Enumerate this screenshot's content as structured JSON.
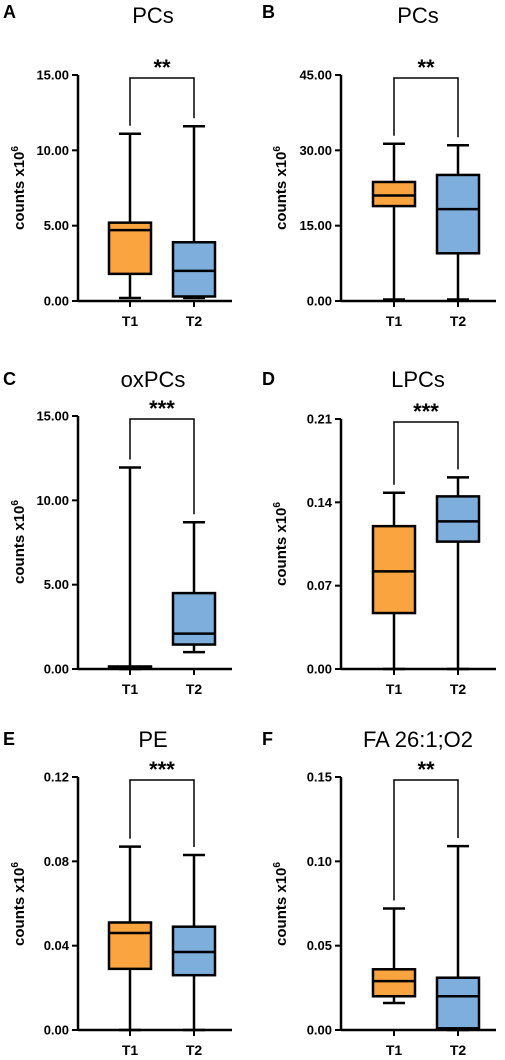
{
  "figure": {
    "panels_order": [
      "A",
      "B",
      "C",
      "D",
      "E",
      "F"
    ]
  },
  "chart_data": [
    {
      "panel": "A",
      "type": "box",
      "title": "PCs",
      "ylabel": "counts x10",
      "ylabel_sup": "6",
      "categories": [
        "T1",
        "T2"
      ],
      "yticks": [
        "0.00",
        "5.00",
        "10.00",
        "15.00"
      ],
      "ylim": [
        0,
        15
      ],
      "boxes": [
        {
          "min": 0.2,
          "q1": 1.8,
          "median": 4.7,
          "q3": 5.2,
          "max": 11.1,
          "color": "#f9a43f"
        },
        {
          "min": 0.2,
          "q1": 0.3,
          "median": 2.0,
          "q3": 3.9,
          "max": 11.6,
          "color": "#7eaedc"
        }
      ],
      "significance": "**"
    },
    {
      "panel": "B",
      "type": "box",
      "title": "PCs",
      "ylabel": "counts x10",
      "ylabel_sup": "6",
      "categories": [
        "T1",
        "T2"
      ],
      "yticks": [
        "0.00",
        "15.00",
        "30.00",
        "45.00"
      ],
      "ylim": [
        0,
        45
      ],
      "boxes": [
        {
          "min": 0.3,
          "q1": 18.9,
          "median": 21.0,
          "q3": 23.7,
          "max": 31.3,
          "color": "#f9a43f"
        },
        {
          "min": 0.3,
          "q1": 9.5,
          "median": 18.3,
          "q3": 25.1,
          "max": 31.0,
          "color": "#7eaedc"
        }
      ],
      "significance": "**"
    },
    {
      "panel": "C",
      "type": "box",
      "title": "oxPCs",
      "ylabel": "counts x10",
      "ylabel_sup": "6",
      "categories": [
        "T1",
        "T2"
      ],
      "yticks": [
        "0.00",
        "5.00",
        "10.00",
        "15.00"
      ],
      "ylim": [
        0,
        15
      ],
      "boxes": [
        {
          "min": 0.0,
          "q1": 0.05,
          "median": 0.1,
          "q3": 0.15,
          "max": 11.95,
          "color": "#f9a43f"
        },
        {
          "min": 1.0,
          "q1": 1.45,
          "median": 2.1,
          "q3": 4.5,
          "max": 8.7,
          "color": "#7eaedc"
        }
      ],
      "significance": "***"
    },
    {
      "panel": "D",
      "type": "box",
      "title": "LPCs",
      "ylabel": "counts x10",
      "ylabel_sup": "6",
      "categories": [
        "T1",
        "T2"
      ],
      "yticks": [
        "0.00",
        "0.07",
        "0.14",
        "0.21"
      ],
      "ylim": [
        0,
        0.21
      ],
      "boxes": [
        {
          "min": 0.0,
          "q1": 0.047,
          "median": 0.082,
          "q3": 0.12,
          "max": 0.148,
          "color": "#f9a43f"
        },
        {
          "min": 0.0,
          "q1": 0.107,
          "median": 0.124,
          "q3": 0.145,
          "max": 0.161,
          "color": "#7eaedc"
        }
      ],
      "significance": "***"
    },
    {
      "panel": "E",
      "type": "box",
      "title": "PE",
      "ylabel": "counts x10",
      "ylabel_sup": "6",
      "categories": [
        "T1",
        "T2"
      ],
      "yticks": [
        "0.00",
        "0.04",
        "0.08",
        "0.12"
      ],
      "ylim": [
        0,
        0.12
      ],
      "boxes": [
        {
          "min": 0.0,
          "q1": 0.029,
          "median": 0.046,
          "q3": 0.051,
          "max": 0.087,
          "color": "#f9a43f"
        },
        {
          "min": 0.0,
          "q1": 0.026,
          "median": 0.037,
          "q3": 0.049,
          "max": 0.083,
          "color": "#7eaedc"
        }
      ],
      "significance": "***"
    },
    {
      "panel": "F",
      "type": "box",
      "title": "FA 26:1;O2",
      "ylabel": "counts x10",
      "ylabel_sup": "6",
      "categories": [
        "T1",
        "T2"
      ],
      "yticks": [
        "0.00",
        "0.05",
        "0.10",
        "0.15"
      ],
      "ylim": [
        0,
        0.15
      ],
      "boxes": [
        {
          "min": 0.016,
          "q1": 0.02,
          "median": 0.029,
          "q3": 0.036,
          "max": 0.072,
          "color": "#f9a43f"
        },
        {
          "min": 0.0,
          "q1": 0.001,
          "median": 0.02,
          "q3": 0.031,
          "max": 0.109,
          "color": "#7eaedc"
        }
      ],
      "significance": "**"
    }
  ]
}
